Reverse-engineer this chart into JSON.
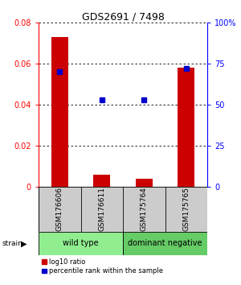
{
  "title": "GDS2691 / 7498",
  "samples": [
    "GSM176606",
    "GSM176611",
    "GSM175764",
    "GSM175765"
  ],
  "log10_ratio": [
    0.073,
    0.006,
    0.004,
    0.058
  ],
  "percentile_rank_pct": [
    70,
    53,
    53,
    72
  ],
  "groups": [
    {
      "label": "wild type",
      "samples": [
        0,
        1
      ],
      "color": "#90EE90"
    },
    {
      "label": "dominant negative",
      "samples": [
        2,
        3
      ],
      "color": "#66CC66"
    }
  ],
  "bar_color": "#CC0000",
  "dot_color": "#0000CC",
  "ylim_left": [
    0,
    0.08
  ],
  "ylim_right": [
    0,
    100
  ],
  "yticks_left": [
    0,
    0.02,
    0.04,
    0.06,
    0.08
  ],
  "yticks_right": [
    0,
    25,
    50,
    75,
    100
  ],
  "left_tick_labels": [
    "0",
    "0.02",
    "0.04",
    "0.06",
    "0.08"
  ],
  "right_tick_labels": [
    "0",
    "25",
    "50",
    "75",
    "100%"
  ],
  "background_color": "#ffffff",
  "bar_width": 0.4,
  "sample_bg_color": "#cccccc",
  "legend_red_label": "log10 ratio",
  "legend_blue_label": "percentile rank within the sample"
}
